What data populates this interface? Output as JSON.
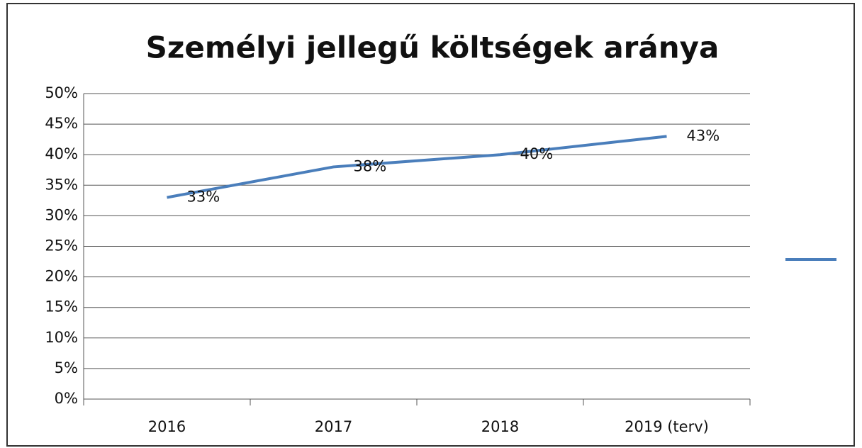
{
  "chart_data": {
    "type": "line",
    "title": "Személyi jellegű költségek aránya",
    "categories": [
      "2016",
      "2017",
      "2018",
      "2019 (terv)"
    ],
    "values": [
      33,
      38,
      40,
      43
    ],
    "value_labels": [
      "33%",
      "38%",
      "40%",
      "43%"
    ],
    "color": "#4a7ebb",
    "ylim": [
      0,
      50
    ],
    "yticks": [
      {
        "value": 0,
        "label": "0%"
      },
      {
        "value": 5,
        "label": "5%"
      },
      {
        "value": 10,
        "label": "10%"
      },
      {
        "value": 15,
        "label": "15%"
      },
      {
        "value": 20,
        "label": "20%"
      },
      {
        "value": 25,
        "label": "25%"
      },
      {
        "value": 30,
        "label": "30%"
      },
      {
        "value": 35,
        "label": "35%"
      },
      {
        "value": 40,
        "label": "40%"
      },
      {
        "value": 45,
        "label": "45%"
      },
      {
        "value": 50,
        "label": "50%"
      }
    ],
    "grid": true
  }
}
